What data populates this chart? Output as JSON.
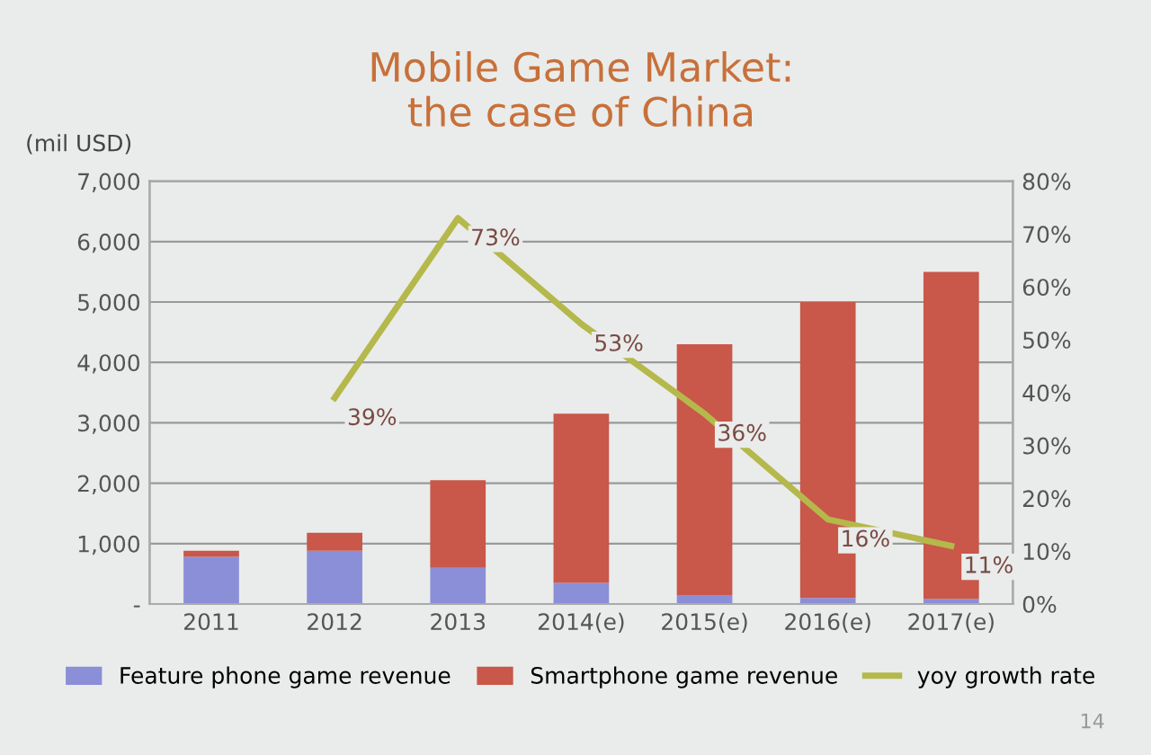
{
  "chart_data": {
    "type": "bar",
    "title": "Mobile Game Market:\nthe case of China",
    "ylabel": "(mil USD)",
    "categories": [
      "2011",
      "2012",
      "2013",
      "2014(e)",
      "2015(e)",
      "2016(e)",
      "2017(e)"
    ],
    "stacked": true,
    "series": [
      {
        "name": "Feature phone game revenue",
        "color": "#8b8fd8",
        "values": [
          780,
          880,
          600,
          350,
          150,
          100,
          80
        ]
      },
      {
        "name": "Smartphone game revenue",
        "color": "#c9574a",
        "values": [
          100,
          300,
          1450,
          2800,
          4150,
          4900,
          5420
        ]
      },
      {
        "name": "yoy growth rate",
        "type": "line",
        "axis": "y2",
        "color": "#b5b84a",
        "values": [
          null,
          39,
          73,
          53,
          36,
          16,
          11
        ],
        "value_labels": [
          null,
          "39%",
          "73%",
          "53%",
          "36%",
          "16%",
          "11%"
        ]
      }
    ],
    "ylim": [
      0,
      7000
    ],
    "yticks": [
      {
        "value": 0,
        "label": "-"
      },
      {
        "value": 1000,
        "label": "1,000"
      },
      {
        "value": 2000,
        "label": "2,000"
      },
      {
        "value": 3000,
        "label": "3,000"
      },
      {
        "value": 4000,
        "label": "4,000"
      },
      {
        "value": 5000,
        "label": "5,000"
      },
      {
        "value": 6000,
        "label": "6,000"
      },
      {
        "value": 7000,
        "label": "7,000"
      }
    ],
    "y2lim": [
      0,
      80
    ],
    "y2ticks": [
      {
        "value": 0,
        "label": "0%"
      },
      {
        "value": 10,
        "label": "10%"
      },
      {
        "value": 20,
        "label": "20%"
      },
      {
        "value": 30,
        "label": "30%"
      },
      {
        "value": 40,
        "label": "40%"
      },
      {
        "value": 50,
        "label": "50%"
      },
      {
        "value": 60,
        "label": "60%"
      },
      {
        "value": 70,
        "label": "70%"
      },
      {
        "value": 80,
        "label": "80%"
      }
    ],
    "grid": "y",
    "legend": "bottom",
    "annotations": [
      "14"
    ]
  }
}
